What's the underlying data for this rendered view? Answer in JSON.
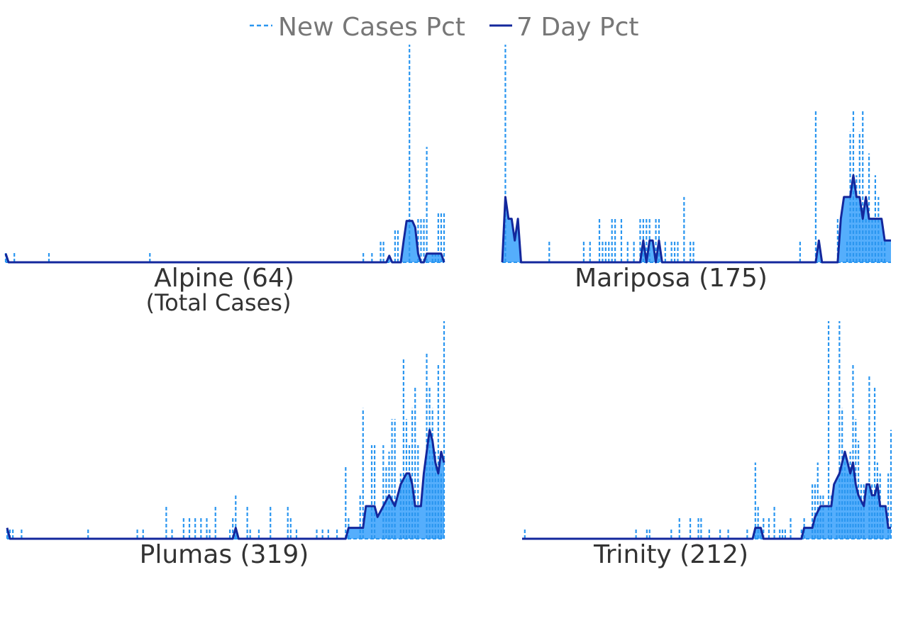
{
  "legend": {
    "new_cases_label": "New Cases Pct",
    "seven_day_label": "7 Day Pct"
  },
  "colors": {
    "new_cases": "#2a96f0",
    "fill": "#55aefc",
    "seven_day": "#13279c",
    "title_text": "#333333",
    "legend_text": "#777777"
  },
  "chart_data": [
    {
      "type": "area",
      "title": "Alpine (64)",
      "subtitle": "(Total Cases)",
      "series": [
        {
          "name": "New Cases Pct",
          "style": "dashed-spikes",
          "values": [
            [
              0,
              5
            ],
            [
              3,
              5
            ],
            [
              15,
              5
            ],
            [
              50,
              5
            ],
            [
              124,
              5
            ],
            [
              127,
              5
            ],
            [
              130,
              10
            ],
            [
              131,
              10
            ],
            [
              135,
              15
            ],
            [
              136,
              15
            ],
            [
              140,
              100
            ],
            [
              143,
              20
            ],
            [
              144,
              20
            ],
            [
              145,
              20
            ],
            [
              146,
              53
            ],
            [
              148,
              5
            ],
            [
              149,
              5
            ],
            [
              150,
              23
            ],
            [
              151,
              23
            ],
            [
              152,
              23
            ]
          ]
        },
        {
          "name": "7 Day Pct",
          "style": "solid-filled",
          "values": [
            [
              0,
              4
            ],
            [
              1,
              0
            ],
            [
              132,
              0
            ],
            [
              133,
              3
            ],
            [
              134,
              0
            ],
            [
              137,
              0
            ],
            [
              138,
              10
            ],
            [
              139,
              19
            ],
            [
              141,
              19
            ],
            [
              142,
              16
            ],
            [
              143,
              4
            ],
            [
              144,
              0
            ],
            [
              145,
              0
            ],
            [
              146,
              4
            ],
            [
              151,
              4
            ],
            [
              152,
              0
            ]
          ]
        }
      ],
      "x_range": [
        0,
        152
      ],
      "ylim": [
        0,
        100
      ]
    },
    {
      "type": "area",
      "title": "Mariposa (175)",
      "series": [
        {
          "name": "New Cases Pct",
          "style": "dashed-spikes",
          "values": [
            [
              1,
              100
            ],
            [
              15,
              10
            ],
            [
              26,
              10
            ],
            [
              28,
              10
            ],
            [
              31,
              20
            ],
            [
              32,
              10
            ],
            [
              33,
              10
            ],
            [
              34,
              10
            ],
            [
              35,
              20
            ],
            [
              36,
              20
            ],
            [
              38,
              20
            ],
            [
              40,
              10
            ],
            [
              42,
              10
            ],
            [
              44,
              20
            ],
            [
              45,
              20
            ],
            [
              46,
              20
            ],
            [
              47,
              20
            ],
            [
              49,
              20
            ],
            [
              50,
              20
            ],
            [
              52,
              10
            ],
            [
              54,
              10
            ],
            [
              55,
              10
            ],
            [
              56,
              10
            ],
            [
              58,
              30
            ],
            [
              60,
              10
            ],
            [
              61,
              10
            ],
            [
              95,
              10
            ],
            [
              100,
              70
            ],
            [
              107,
              20
            ],
            [
              110,
              10
            ],
            [
              111,
              60
            ],
            [
              112,
              70
            ],
            [
              113,
              40
            ],
            [
              114,
              60
            ],
            [
              115,
              70
            ],
            [
              116,
              20
            ],
            [
              117,
              50
            ],
            [
              118,
              20
            ],
            [
              119,
              40
            ],
            [
              120,
              30
            ],
            [
              121,
              10
            ],
            [
              122,
              10
            ]
          ]
        },
        {
          "name": "7 Day Pct",
          "style": "solid-filled",
          "values": [
            [
              0,
              0
            ],
            [
              1,
              30
            ],
            [
              2,
              20
            ],
            [
              3,
              20
            ],
            [
              4,
              10
            ],
            [
              5,
              20
            ],
            [
              6,
              0
            ],
            [
              44,
              0
            ],
            [
              45,
              10
            ],
            [
              46,
              0
            ],
            [
              47,
              10
            ],
            [
              48,
              10
            ],
            [
              49,
              0
            ],
            [
              50,
              10
            ],
            [
              51,
              0
            ],
            [
              100,
              0
            ],
            [
              101,
              10
            ],
            [
              102,
              0
            ],
            [
              107,
              0
            ],
            [
              108,
              20
            ],
            [
              109,
              30
            ],
            [
              111,
              30
            ],
            [
              112,
              40
            ],
            [
              113,
              30
            ],
            [
              114,
              30
            ],
            [
              115,
              20
            ],
            [
              116,
              30
            ],
            [
              117,
              20
            ],
            [
              121,
              20
            ],
            [
              122,
              10
            ],
            [
              124,
              10
            ]
          ]
        }
      ],
      "x_range": [
        0,
        124
      ],
      "ylim": [
        0,
        100
      ]
    },
    {
      "type": "area",
      "title": "Plumas (319)",
      "series": [
        {
          "name": "New Cases Pct",
          "style": "dashed-spikes",
          "values": [
            [
              0,
              5
            ],
            [
              1,
              5
            ],
            [
              2,
              5
            ],
            [
              5,
              5
            ],
            [
              28,
              5
            ],
            [
              45,
              5
            ],
            [
              47,
              5
            ],
            [
              55,
              15
            ],
            [
              57,
              5
            ],
            [
              61,
              10
            ],
            [
              63,
              10
            ],
            [
              65,
              10
            ],
            [
              67,
              10
            ],
            [
              69,
              10
            ],
            [
              70,
              5
            ],
            [
              72,
              15
            ],
            [
              77,
              5
            ],
            [
              78,
              10
            ],
            [
              79,
              20
            ],
            [
              83,
              15
            ],
            [
              84,
              5
            ],
            [
              87,
              5
            ],
            [
              91,
              15
            ],
            [
              97,
              15
            ],
            [
              98,
              10
            ],
            [
              100,
              5
            ],
            [
              107,
              5
            ],
            [
              109,
              5
            ],
            [
              111,
              5
            ],
            [
              114,
              5
            ],
            [
              117,
              33
            ],
            [
              118,
              10
            ],
            [
              122,
              20
            ],
            [
              123,
              60
            ],
            [
              126,
              43
            ],
            [
              127,
              43
            ],
            [
              130,
              43
            ],
            [
              131,
              33
            ],
            [
              132,
              40
            ],
            [
              133,
              55
            ],
            [
              134,
              55
            ],
            [
              136,
              30
            ],
            [
              137,
              83
            ],
            [
              138,
              55
            ],
            [
              139,
              43
            ],
            [
              140,
              60
            ],
            [
              141,
              70
            ],
            [
              142,
              43
            ],
            [
              145,
              85
            ],
            [
              146,
              70
            ],
            [
              147,
              60
            ],
            [
              148,
              40
            ],
            [
              149,
              80
            ],
            [
              150,
              30
            ],
            [
              151,
              100
            ]
          ]
        },
        {
          "name": "7 Day Pct",
          "style": "solid-filled",
          "values": [
            [
              0,
              5
            ],
            [
              1,
              0
            ],
            [
              78,
              0
            ],
            [
              79,
              5
            ],
            [
              80,
              0
            ],
            [
              117,
              0
            ],
            [
              118,
              5
            ],
            [
              123,
              5
            ],
            [
              124,
              15
            ],
            [
              127,
              15
            ],
            [
              128,
              10
            ],
            [
              130,
              15
            ],
            [
              132,
              20
            ],
            [
              134,
              15
            ],
            [
              136,
              25
            ],
            [
              138,
              30
            ],
            [
              139,
              30
            ],
            [
              140,
              25
            ],
            [
              141,
              15
            ],
            [
              143,
              15
            ],
            [
              144,
              30
            ],
            [
              145,
              40
            ],
            [
              146,
              50
            ],
            [
              147,
              45
            ],
            [
              148,
              35
            ],
            [
              149,
              30
            ],
            [
              150,
              40
            ],
            [
              151,
              35
            ]
          ]
        }
      ],
      "x_range": [
        0,
        151
      ],
      "ylim": [
        0,
        100
      ]
    },
    {
      "type": "area",
      "title": "Trinity (212)",
      "series": [
        {
          "name": "New Cases Pct",
          "style": "dashed-spikes",
          "values": [
            [
              1,
              5
            ],
            [
              42,
              5
            ],
            [
              46,
              5
            ],
            [
              47,
              5
            ],
            [
              55,
              5
            ],
            [
              58,
              10
            ],
            [
              62,
              10
            ],
            [
              65,
              10
            ],
            [
              66,
              10
            ],
            [
              69,
              5
            ],
            [
              73,
              5
            ],
            [
              76,
              5
            ],
            [
              83,
              5
            ],
            [
              86,
              35
            ],
            [
              87,
              15
            ],
            [
              88,
              5
            ],
            [
              89,
              10
            ],
            [
              91,
              10
            ],
            [
              93,
              15
            ],
            [
              95,
              5
            ],
            [
              96,
              5
            ],
            [
              97,
              5
            ],
            [
              99,
              10
            ],
            [
              103,
              5
            ],
            [
              104,
              10
            ],
            [
              107,
              25
            ],
            [
              108,
              25
            ],
            [
              109,
              35
            ],
            [
              110,
              20
            ],
            [
              111,
              20
            ],
            [
              113,
              100
            ],
            [
              114,
              20
            ],
            [
              116,
              15
            ],
            [
              117,
              100
            ],
            [
              118,
              60
            ],
            [
              119,
              40
            ],
            [
              120,
              30
            ],
            [
              121,
              40
            ],
            [
              122,
              80
            ],
            [
              123,
              55
            ],
            [
              124,
              45
            ],
            [
              125,
              25
            ],
            [
              126,
              25
            ],
            [
              128,
              75
            ],
            [
              129,
              25
            ],
            [
              130,
              70
            ],
            [
              131,
              35
            ],
            [
              132,
              30
            ],
            [
              133,
              15
            ],
            [
              135,
              30
            ],
            [
              136,
              50
            ]
          ]
        },
        {
          "name": "7 Day Pct",
          "style": "solid-filled",
          "values": [
            [
              0,
              0
            ],
            [
              85,
              0
            ],
            [
              86,
              5
            ],
            [
              88,
              5
            ],
            [
              89,
              0
            ],
            [
              103,
              0
            ],
            [
              104,
              5
            ],
            [
              107,
              5
            ],
            [
              108,
              10
            ],
            [
              110,
              15
            ],
            [
              111,
              15
            ],
            [
              112,
              15
            ],
            [
              114,
              15
            ],
            [
              115,
              25
            ],
            [
              117,
              30
            ],
            [
              118,
              35
            ],
            [
              119,
              40
            ],
            [
              120,
              35
            ],
            [
              121,
              30
            ],
            [
              122,
              35
            ],
            [
              123,
              25
            ],
            [
              124,
              20
            ],
            [
              126,
              15
            ],
            [
              127,
              25
            ],
            [
              128,
              25
            ],
            [
              129,
              20
            ],
            [
              130,
              20
            ],
            [
              131,
              25
            ],
            [
              132,
              15
            ],
            [
              134,
              15
            ],
            [
              135,
              5
            ],
            [
              136,
              5
            ]
          ]
        }
      ],
      "x_range": [
        0,
        136
      ],
      "ylim": [
        0,
        100
      ]
    }
  ]
}
